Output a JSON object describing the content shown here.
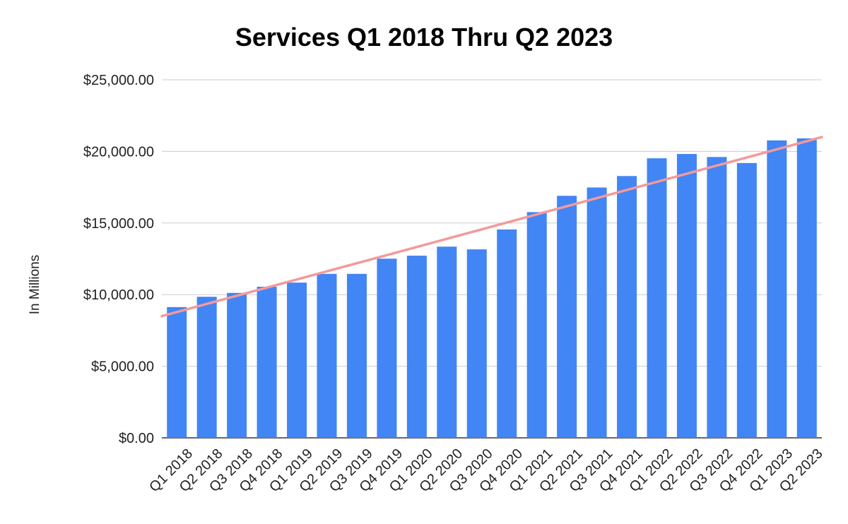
{
  "chart_data": {
    "type": "bar",
    "title": "Services Q1 2018 Thru Q2 2023",
    "xlabel": "",
    "ylabel": "In Millions",
    "categories": [
      "Q1 2018",
      "Q2 2018",
      "Q3 2018",
      "Q4 2018",
      "Q1 2019",
      "Q2 2019",
      "Q3 2019",
      "Q4 2019",
      "Q1 2020",
      "Q2 2020",
      "Q3 2020",
      "Q4 2020",
      "Q1 2021",
      "Q2 2021",
      "Q3 2021",
      "Q4 2021",
      "Q1 2022",
      "Q2 2022",
      "Q3 2022",
      "Q4 2022",
      "Q1 2023",
      "Q2 2023"
    ],
    "series": [
      {
        "name": "Services",
        "color": "#4285f4",
        "values": [
          9130,
          9850,
          10120,
          10550,
          10840,
          11450,
          11450,
          12510,
          12720,
          13350,
          13160,
          14550,
          15760,
          16900,
          17480,
          18280,
          19520,
          19820,
          19610,
          19190,
          20770,
          20910
        ]
      }
    ],
    "trendline": {
      "color": "#f4999a",
      "y_start": 8500,
      "y_end": 21000
    },
    "ylim": [
      0,
      25000
    ],
    "yticks": [
      0,
      5000,
      10000,
      15000,
      20000,
      25000
    ],
    "ytick_labels": [
      "$0.00",
      "$5,000.00",
      "$10,000.00",
      "$15,000.00",
      "$20,000.00",
      "$25,000.00"
    ],
    "grid": true,
    "legend": "none"
  }
}
